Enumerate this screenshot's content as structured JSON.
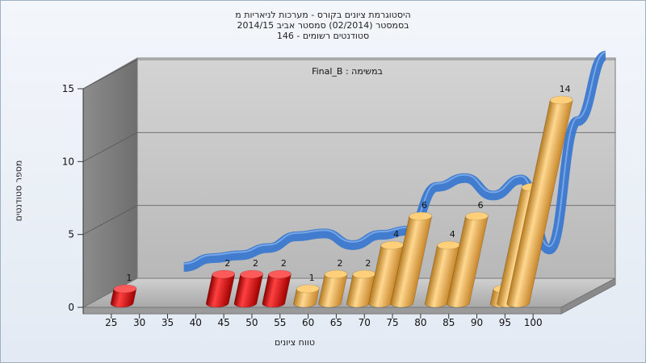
{
  "title": {
    "line1": "היסטוגרמת ציונים בקורס - מערכות לניאריות מ",
    "line2": "בסמסטר (02/2014) סמסטר אביב 2014/15",
    "line3": "סטודנטים רשומים - 146"
  },
  "chart_data": {
    "type": "bar",
    "subtitle": "במשימה : Final_B",
    "xlabel": "טווח ציונים",
    "ylabel": "מספר סטודנטים",
    "categories": [
      25,
      30,
      35,
      40,
      45,
      50,
      55,
      60,
      65,
      70,
      75,
      80,
      85,
      90,
      95,
      100
    ],
    "bars": [
      {
        "x": 25,
        "value": 1,
        "color": "#e01010"
      },
      {
        "x": 42.5,
        "value": 2,
        "color": "#e01010"
      },
      {
        "x": 47.5,
        "value": 2,
        "color": "#e01010"
      },
      {
        "x": 52.5,
        "value": 2,
        "color": "#e01010"
      },
      {
        "x": 57.5,
        "value": 1,
        "color": "#f0b050"
      },
      {
        "x": 62.5,
        "value": 2,
        "color": "#f0b050"
      },
      {
        "x": 67.5,
        "value": 2,
        "color": "#f0b050"
      },
      {
        "x": 72.5,
        "value": 4,
        "color": "#f0b050"
      },
      {
        "x": 77.5,
        "value": 6,
        "color": "#f0b050"
      },
      {
        "x": 82.5,
        "value": 4,
        "color": "#f0b050"
      },
      {
        "x": 87.5,
        "value": 6,
        "color": "#f0b050"
      },
      {
        "x": 92.5,
        "value": 1,
        "color": "#f0b050"
      },
      {
        "x": 97.5,
        "value": 8,
        "color": "#f0b050"
      },
      {
        "x": 102.5,
        "value": 14,
        "color": "#f0b050"
      }
    ],
    "cumulative_line": {
      "x": [
        30,
        35,
        40,
        45,
        50,
        55,
        60,
        65,
        70,
        75,
        80,
        85,
        90,
        95,
        100,
        105
      ],
      "values": [
        1,
        1.6,
        1.8,
        2.3,
        3.1,
        3.3,
        2.5,
        3.2,
        3.5,
        6.5,
        7.1,
        5.9,
        7.0,
        2.2,
        11.0,
        15.5
      ],
      "color": "#3a78d0"
    },
    "y_ticks": [
      0,
      5,
      10,
      15
    ],
    "ylim": [
      0,
      15
    ],
    "xlim": [
      20,
      105
    ],
    "grid": true
  }
}
